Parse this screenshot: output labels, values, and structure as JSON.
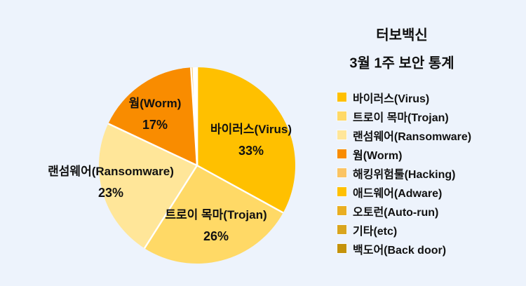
{
  "header": {
    "title_line1": "터보백신",
    "title_line2": "3월 1주 보안 통계"
  },
  "chart_data": {
    "type": "pie",
    "title": "터보백신 3월 1주 보안 통계",
    "unit": "%",
    "start_angle": "12-oclock",
    "direction": "clockwise",
    "legend_position": "right",
    "background_color": "#EDF3FC",
    "separator_color": "#FFFFFF",
    "series": [
      {
        "label": "바이러스(Virus)",
        "value": 33,
        "display_pct": "33%",
        "color": "#FFC000",
        "labeled": true
      },
      {
        "label": "트로이 목마(Trojan)",
        "value": 26,
        "display_pct": "26%",
        "color": "#FFD966",
        "labeled": true
      },
      {
        "label": "랜섬웨어(Ransomware)",
        "value": 23,
        "display_pct": "23%",
        "color": "#FFE699",
        "labeled": true
      },
      {
        "label": "웜(Worm)",
        "value": 17,
        "display_pct": "17%",
        "color": "#F98C00",
        "labeled": true
      },
      {
        "label": "해킹위험툴(Hacking)",
        "value": 0.4,
        "color": "#FBC463",
        "labeled": false
      },
      {
        "label": "애드웨어(Adware)",
        "value": 0.25,
        "color": "#FFC000",
        "labeled": false
      },
      {
        "label": "오토런(Auto-run)",
        "value": 0.15,
        "color": "#E9AE21",
        "labeled": false
      },
      {
        "label": "기타(etc)",
        "value": 0.12,
        "color": "#D9A51E",
        "labeled": false
      },
      {
        "label": "백도어(Back door)",
        "value": 0.08,
        "color": "#C4920B",
        "labeled": false
      }
    ]
  }
}
